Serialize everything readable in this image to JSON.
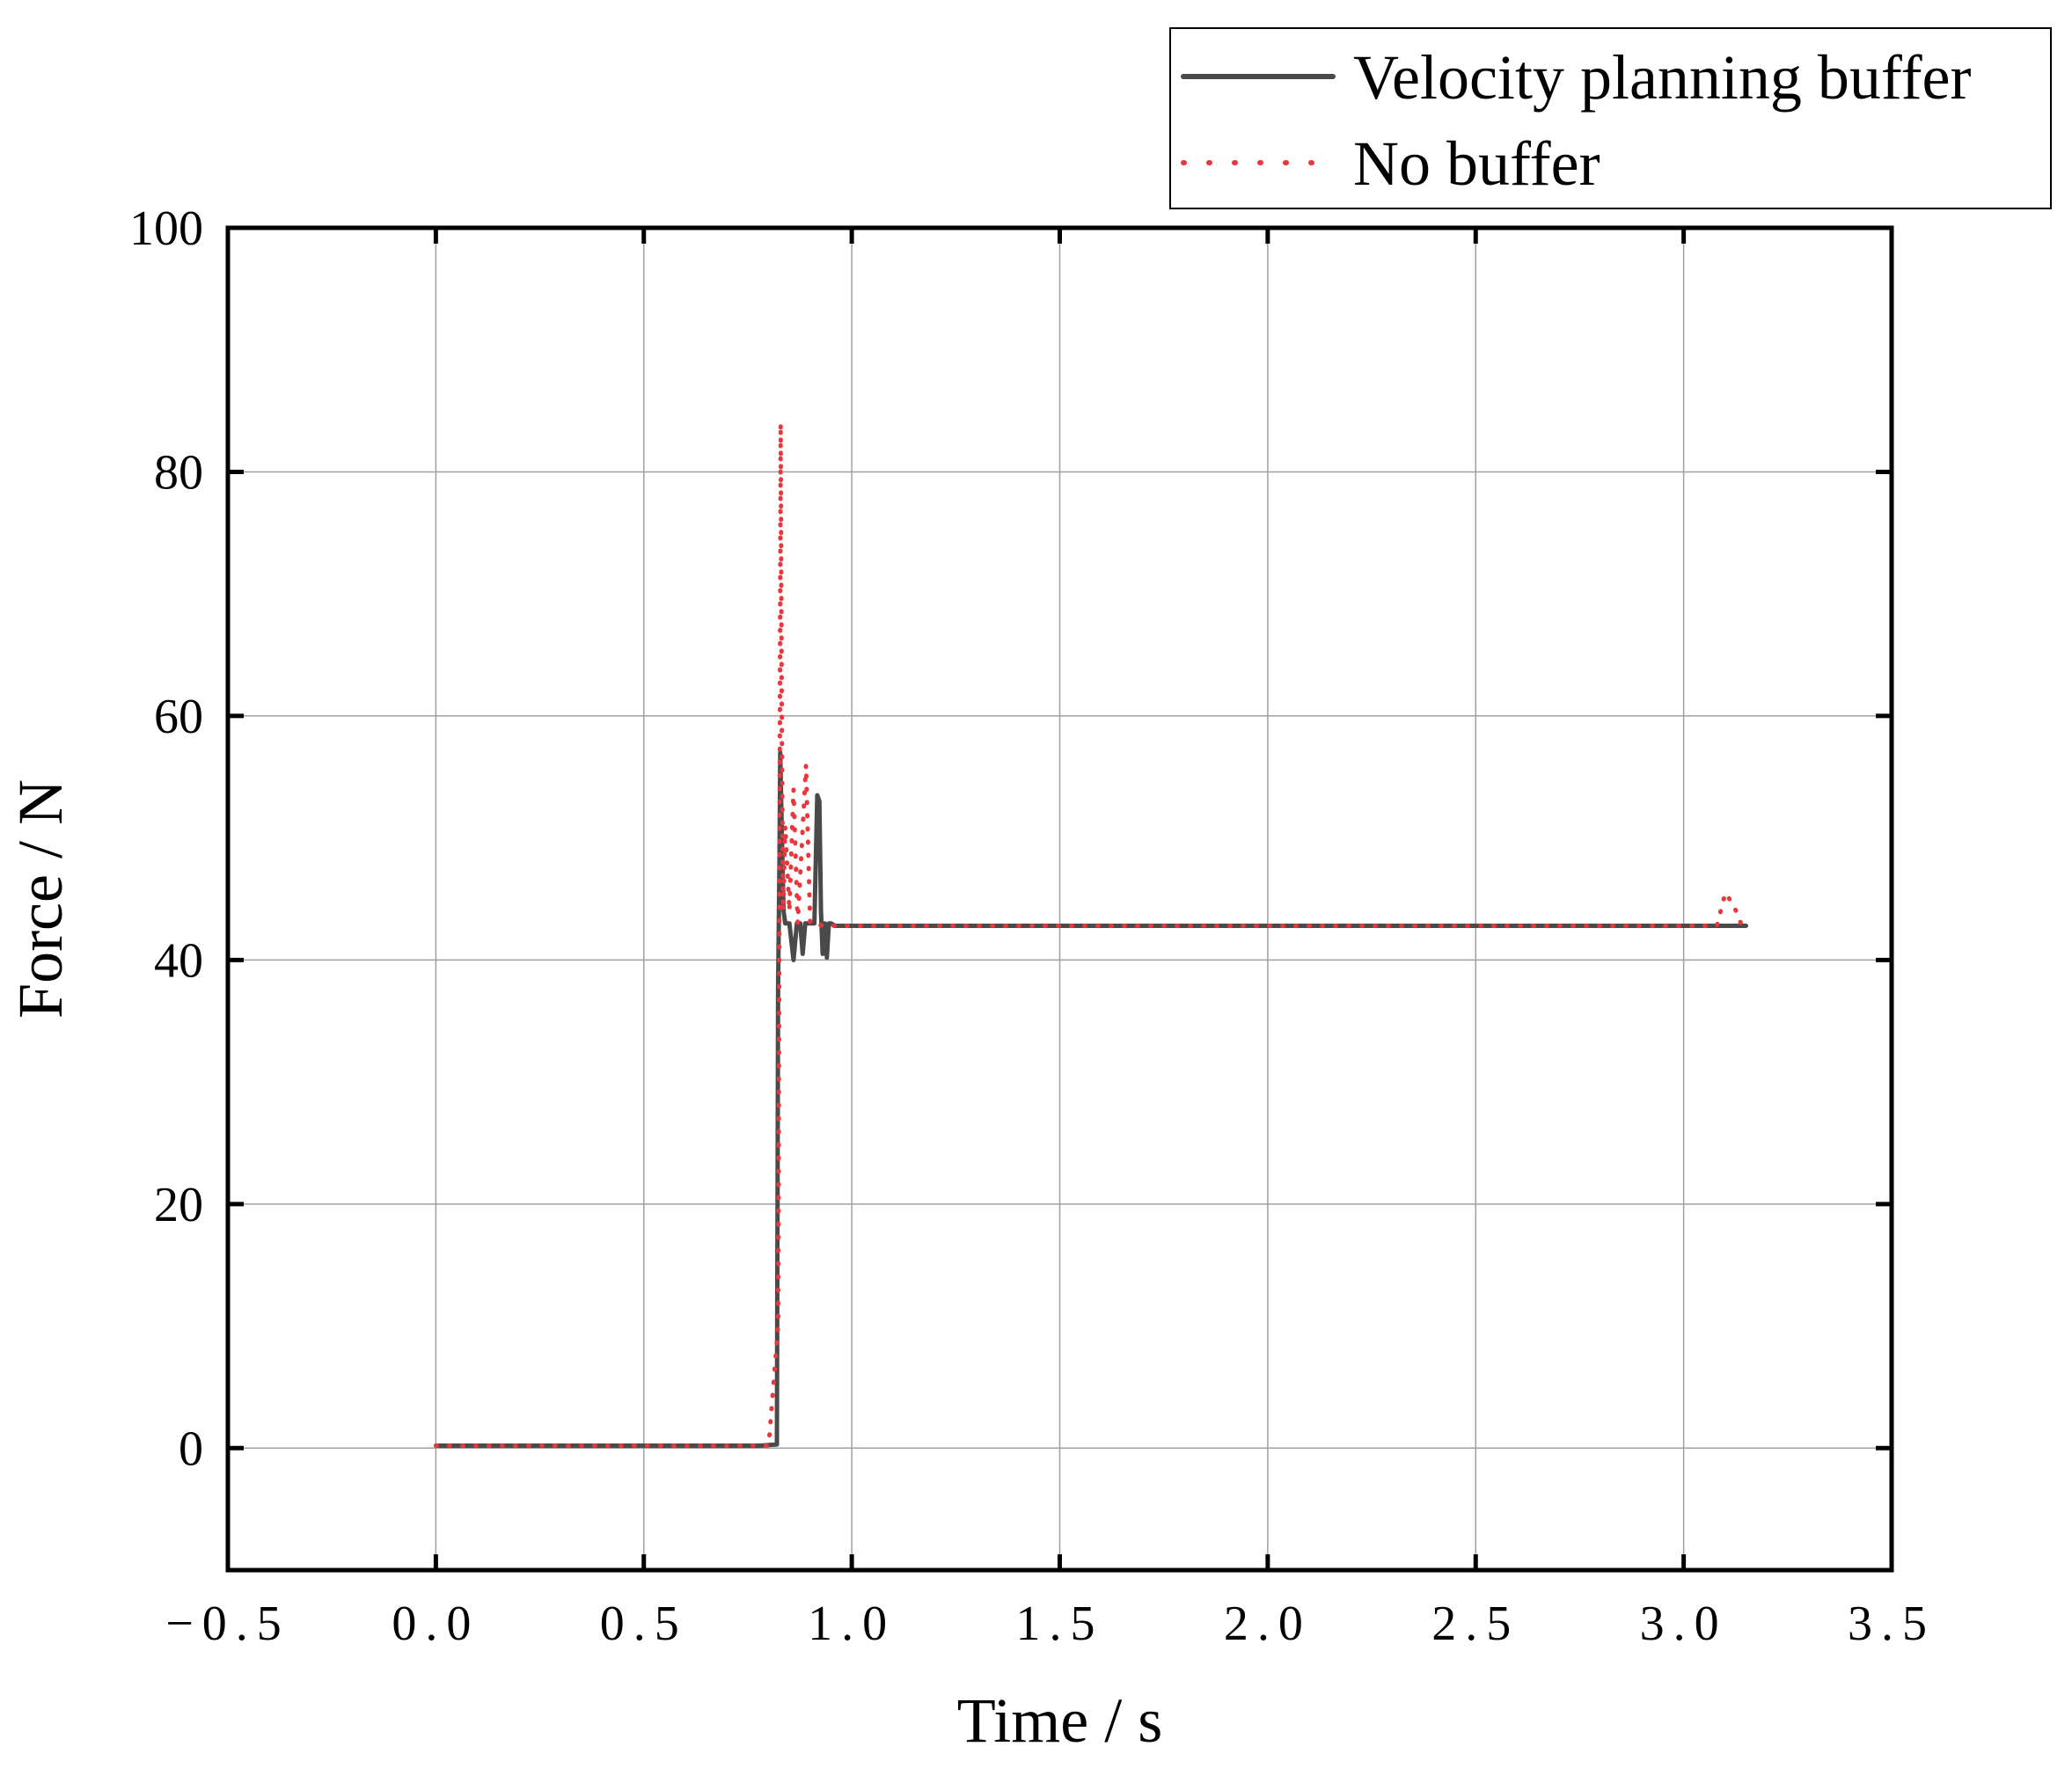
{
  "chart_data": {
    "type": "line",
    "title": "",
    "xlabel": "Time / s",
    "ylabel": "Force / N",
    "xlim": [
      -0.5,
      3.5
    ],
    "ylim": [
      -10,
      100
    ],
    "xticks": [
      -0.5,
      0.0,
      0.5,
      1.0,
      1.5,
      2.0,
      2.5,
      3.0,
      3.5
    ],
    "xtick_labels": [
      "−0.5",
      "0.0",
      "0.5",
      "1.0",
      "1.5",
      "2.0",
      "2.5",
      "3.0",
      "3.5"
    ],
    "yticks": [
      0,
      20,
      40,
      60,
      80,
      100
    ],
    "ytick_labels": [
      "0",
      "20",
      "40",
      "60",
      "80",
      "100"
    ],
    "grid": true,
    "legend_position": "top-right, outside plot",
    "series": [
      {
        "name": "Velocity planning buffer",
        "color": "#4a4a4a",
        "style": "solid",
        "x": [
          0.0,
          0.2,
          0.4,
          0.6,
          0.78,
          0.82,
          0.823,
          0.826,
          0.828,
          0.832,
          0.836,
          0.84,
          0.85,
          0.86,
          0.868,
          0.876,
          0.882,
          0.888,
          0.895,
          0.902,
          0.91,
          0.917,
          0.922,
          0.926,
          0.93,
          0.935,
          0.94,
          0.945,
          0.95,
          0.96,
          0.98,
          1.2,
          1.5,
          2.0,
          2.5,
          3.0,
          3.15
        ],
        "y": [
          0.2,
          0.2,
          0.2,
          0.2,
          0.2,
          0.3,
          38,
          48,
          57,
          50,
          44,
          43,
          43,
          40,
          43,
          43,
          40.5,
          43,
          43,
          43,
          43,
          53.5,
          53,
          44,
          40.5,
          43,
          40.2,
          43,
          43,
          42.8,
          42.8,
          42.8,
          42.8,
          42.8,
          42.8,
          42.8,
          42.8
        ]
      },
      {
        "name": "No buffer",
        "color": "#e8383d",
        "style": "dotted",
        "x": [
          0.0,
          0.2,
          0.4,
          0.6,
          0.8,
          0.823,
          0.826,
          0.829,
          0.832,
          0.835,
          0.84,
          0.85,
          0.86,
          0.87,
          0.89,
          0.9,
          0.91,
          0.93,
          0.96,
          1.2,
          1.5,
          2.0,
          2.5,
          3.0,
          3.08,
          3.1,
          3.12,
          3.14
        ],
        "y": [
          0.2,
          0.2,
          0.2,
          0.2,
          0.2,
          10,
          45,
          84,
          58,
          44,
          51,
          44,
          54,
          43,
          56,
          43,
          43,
          42.8,
          42.8,
          42.8,
          42.8,
          42.8,
          42.8,
          42.8,
          42.8,
          45.5,
          44.5,
          42.8
        ]
      }
    ]
  }
}
